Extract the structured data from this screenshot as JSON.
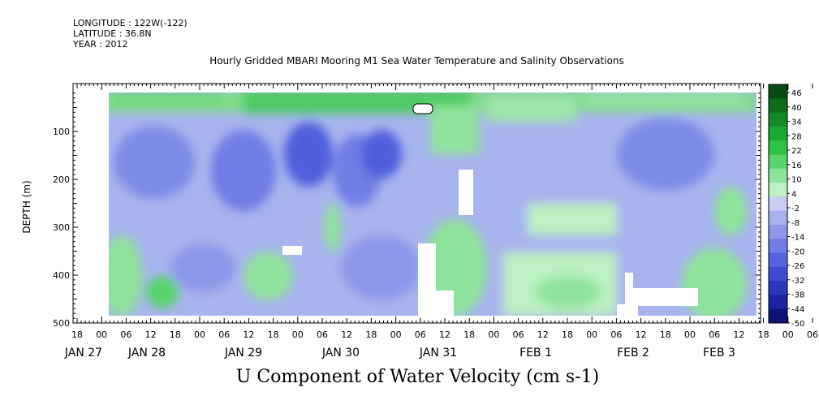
{
  "header": {
    "longitude": "LONGITUDE : 122W(-122)",
    "latitude": "LATITUDE : 36.8N",
    "year": "YEAR : 2012"
  },
  "chart_data": {
    "type": "heatmap",
    "title": "Hourly Gridded MBARI Mooring M1 Sea Water Temperature and Salinity Observations",
    "xlabel": "U Component of Water Velocity (cm s-1)",
    "ylabel": "DEPTH (m)",
    "ylim": [
      500,
      0
    ],
    "y_ticks": [
      100,
      200,
      300,
      400,
      500
    ],
    "x_hour_ticks": [
      "18",
      "00",
      "06",
      "12",
      "18",
      "00",
      "06",
      "12",
      "18",
      "00",
      "06",
      "12",
      "18",
      "00",
      "06",
      "12",
      "18",
      "00",
      "06",
      "12",
      "18",
      "00",
      "06",
      "12",
      "18",
      "00",
      "06",
      "12",
      "18",
      "00",
      "06",
      "12"
    ],
    "x_date_labels": [
      "JAN 27",
      "JAN 28",
      "JAN 29",
      "JAN 30",
      "JAN 31",
      "FEB 1",
      "FEB 2",
      "FEB 3"
    ],
    "colorbar": {
      "labels": [
        "46",
        "40",
        "34",
        "28",
        "22",
        "16",
        "10",
        "4",
        "-2",
        "-8",
        "-14",
        "-20",
        "-26",
        "-32",
        "-38",
        "-44",
        "-50"
      ],
      "colors": [
        "#0b4a12",
        "#0f6a1c",
        "#138a26",
        "#1aa832",
        "#2ec245",
        "#58d46a",
        "#8ee39a",
        "#bdf0c2",
        "#c9cdf3",
        "#a9b1ee",
        "#8d98ea",
        "#6f7de5",
        "#5563de",
        "#3d4bd3",
        "#2a36be",
        "#1a24a0",
        "#0d1478"
      ]
    },
    "grid": false,
    "legend": "colorbar-right"
  }
}
